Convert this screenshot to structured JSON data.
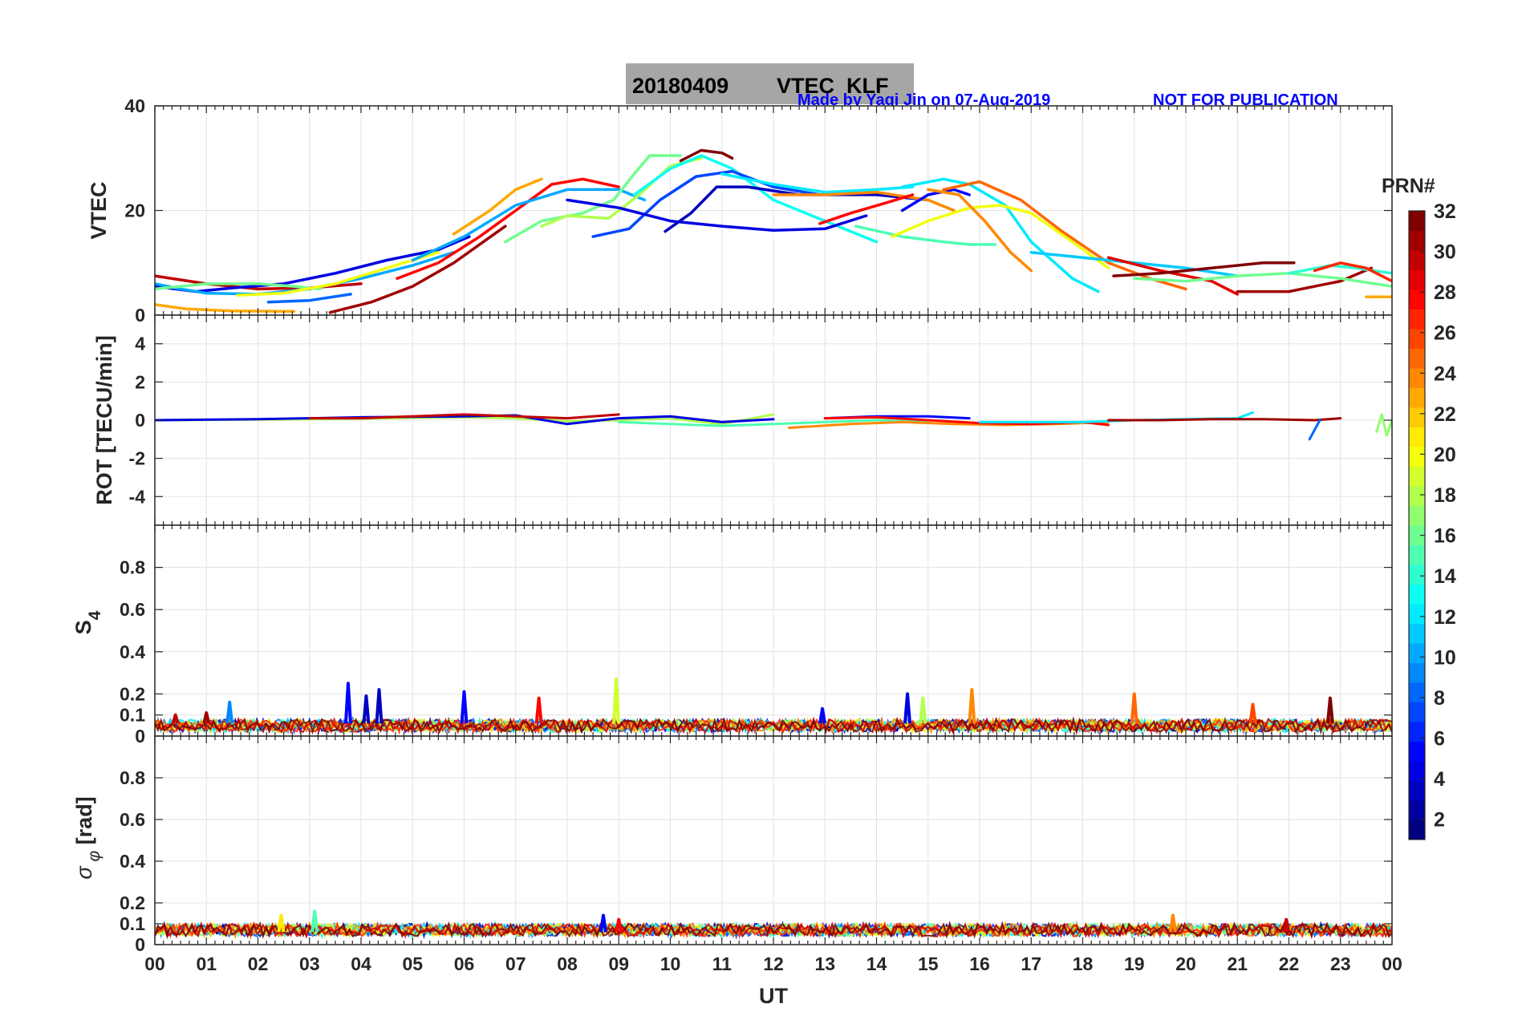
{
  "header": {
    "title_date": "20180409",
    "title_name": "VTEC  KLF",
    "credit": "Made by Yaqi Jin on 07-Aug-2019",
    "notice": "NOT FOR PUBLICATION"
  },
  "colorbar": {
    "title": "PRN#",
    "ticks": [
      "2",
      "4",
      "6",
      "8",
      "10",
      "12",
      "14",
      "16",
      "18",
      "20",
      "22",
      "24",
      "26",
      "28",
      "30",
      "32"
    ],
    "range": [
      1,
      32
    ],
    "colormap": "jet"
  },
  "chart_data": [
    {
      "type": "line",
      "id": "vtec",
      "ylabel": "VTEC",
      "ylim": [
        0,
        40
      ],
      "yticks": [
        "0",
        "20",
        "40"
      ],
      "xlim": [
        0,
        24
      ],
      "grid": true,
      "series": [
        {
          "prn": 30,
          "x": [
            0,
            1.0,
            2.0,
            3.0,
            4.0
          ],
          "y": [
            7.5,
            6.0,
            5.0,
            5.2,
            6.0
          ]
        },
        {
          "prn": 4,
          "x": [
            0,
            0.8,
            1.5,
            2.5,
            3.5,
            4.5,
            5.5,
            6.1
          ],
          "y": [
            5.5,
            4.5,
            5.2,
            6.0,
            8.0,
            10.5,
            12.5,
            15.0
          ]
        },
        {
          "prn": 10,
          "x": [
            0,
            0.5,
            1.0,
            2.0,
            3.0,
            4.0,
            5.0,
            5.8
          ],
          "y": [
            6.0,
            5.0,
            4.2,
            4.0,
            5.0,
            7.0,
            9.5,
            12.0
          ]
        },
        {
          "prn": 16,
          "x": [
            0,
            1.0,
            2.0,
            2.7,
            3.2
          ],
          "y": [
            5.0,
            6.0,
            6.0,
            5.5,
            5.0
          ]
        },
        {
          "prn": 23,
          "x": [
            0,
            0.6,
            1.5,
            2.7
          ],
          "y": [
            2.0,
            1.2,
            0.8,
            0.7
          ]
        },
        {
          "prn": 20,
          "x": [
            1.6,
            2.5,
            3.5,
            4.5,
            5.5
          ],
          "y": [
            3.8,
            4.2,
            6.0,
            9.0,
            12.0
          ]
        },
        {
          "prn": 8,
          "x": [
            2.2,
            3.0,
            3.8
          ],
          "y": [
            2.5,
            2.8,
            4.0
          ]
        },
        {
          "prn": 31,
          "x": [
            3.4,
            4.2,
            5.0,
            5.8,
            6.8
          ],
          "y": [
            0.5,
            2.5,
            5.5,
            10.0,
            17.0
          ]
        },
        {
          "prn": 28,
          "x": [
            4.7,
            5.5,
            6.3,
            7.0,
            7.7,
            8.3,
            9.0
          ],
          "y": [
            7.0,
            10.0,
            15.0,
            20.0,
            25.0,
            26.0,
            24.5
          ]
        },
        {
          "prn": 23,
          "x": [
            5.8,
            6.5,
            7.0,
            7.5
          ],
          "y": [
            15.5,
            20.0,
            24.0,
            26.0
          ]
        },
        {
          "prn": 10,
          "x": [
            5.0,
            6.0,
            7.0,
            8.0,
            9.0,
            9.5
          ],
          "y": [
            10.5,
            15.0,
            21.0,
            24.0,
            24.0,
            22.0
          ]
        },
        {
          "prn": 16,
          "x": [
            6.8,
            7.5,
            8.3,
            8.9,
            9.3,
            9.6,
            10.2
          ],
          "y": [
            14.0,
            18.0,
            19.5,
            22.0,
            27.0,
            30.5,
            30.5
          ]
        },
        {
          "prn": 18,
          "x": [
            7.5,
            8.0,
            8.8,
            9.4,
            10.0,
            10.6
          ],
          "y": [
            17.0,
            19.0,
            18.5,
            23.0,
            28.5,
            30.0
          ]
        },
        {
          "prn": 13,
          "x": [
            9.3,
            10.0,
            10.6,
            11.2,
            12.0,
            13.0,
            14.0
          ],
          "y": [
            23.0,
            28.0,
            30.5,
            28.0,
            22.0,
            18.0,
            14.0
          ]
        },
        {
          "prn": 7,
          "x": [
            8.5,
            9.2,
            9.8,
            10.5,
            11.2,
            12.0,
            12.9
          ],
          "y": [
            15.0,
            16.5,
            22.0,
            26.5,
            27.5,
            24.5,
            23.0
          ]
        },
        {
          "prn": 4,
          "x": [
            8.0,
            9.0,
            10.0,
            11.0,
            12.0,
            13.0,
            13.8
          ],
          "y": [
            22.0,
            20.5,
            18.0,
            17.0,
            16.2,
            16.5,
            19.0
          ]
        },
        {
          "prn": 3,
          "x": [
            9.9,
            10.4,
            10.9,
            11.5,
            12.5,
            14.0,
            15.0
          ],
          "y": [
            16.0,
            19.5,
            24.5,
            24.5,
            23.0,
            23.0,
            22.0
          ]
        },
        {
          "prn": 32,
          "x": [
            10.2,
            10.6,
            11.0,
            11.2
          ],
          "y": [
            29.5,
            31.5,
            31.0,
            30.0
          ]
        },
        {
          "prn": 12,
          "x": [
            11.0,
            12.0,
            13.0,
            14.0,
            14.7
          ],
          "y": [
            27.0,
            25.0,
            23.5,
            24.0,
            24.5
          ]
        },
        {
          "prn": 24,
          "x": [
            12.0,
            13.0,
            14.0,
            15.0,
            15.5
          ],
          "y": [
            23.0,
            23.0,
            23.5,
            22.0,
            20.0
          ]
        },
        {
          "prn": 28,
          "x": [
            12.9,
            13.5,
            14.2,
            14.7
          ],
          "y": [
            17.5,
            19.5,
            21.5,
            23.0
          ]
        },
        {
          "prn": 5,
          "x": [
            14.5,
            15.0,
            15.5,
            15.8
          ],
          "y": [
            20.0,
            23.0,
            24.0,
            23.0
          ]
        },
        {
          "prn": 15,
          "x": [
            13.6,
            14.5,
            15.3,
            15.8,
            16.3
          ],
          "y": [
            17.0,
            15.0,
            14.0,
            13.5,
            13.5
          ]
        },
        {
          "prn": 12,
          "x": [
            14.5,
            15.3,
            15.8,
            16.5,
            17.0,
            17.8,
            18.3
          ],
          "y": [
            24.5,
            26.0,
            25.0,
            21.0,
            14.0,
            7.0,
            4.5
          ]
        },
        {
          "prn": 20,
          "x": [
            14.3,
            15.0,
            15.8,
            16.4,
            17.0,
            17.8,
            18.5
          ],
          "y": [
            15.0,
            18.0,
            20.5,
            21.0,
            19.5,
            14.0,
            9.0
          ]
        },
        {
          "prn": 24,
          "x": [
            15.0,
            15.6,
            16.1,
            16.6,
            17.0
          ],
          "y": [
            24.0,
            23.0,
            18.0,
            12.0,
            8.5
          ]
        },
        {
          "prn": 25,
          "x": [
            15.3,
            16.0,
            16.8,
            17.6,
            18.5,
            19.3,
            20.0
          ],
          "y": [
            24.0,
            25.5,
            22.0,
            16.0,
            10.0,
            7.0,
            5.0
          ]
        },
        {
          "prn": 11,
          "x": [
            17.0,
            18.0,
            19.0,
            20.0,
            21.0
          ],
          "y": [
            12.0,
            11.0,
            10.0,
            9.0,
            7.5
          ]
        },
        {
          "prn": 29,
          "x": [
            18.5,
            19.5,
            20.5,
            21.0
          ],
          "y": [
            11.0,
            8.5,
            6.5,
            4.0
          ]
        },
        {
          "prn": 32,
          "x": [
            18.6,
            19.5,
            20.5,
            21.5,
            22.1
          ],
          "y": [
            7.5,
            8.0,
            9.0,
            10.0,
            10.0
          ]
        },
        {
          "prn": 31,
          "x": [
            21.0,
            22.0,
            23.0,
            23.6
          ],
          "y": [
            4.5,
            4.5,
            6.5,
            9.0
          ]
        },
        {
          "prn": 16,
          "x": [
            19.0,
            20.0,
            21.0,
            22.0,
            23.0,
            24.0
          ],
          "y": [
            7.0,
            6.5,
            7.5,
            8.0,
            7.0,
            5.5
          ]
        },
        {
          "prn": 14,
          "x": [
            22.0,
            22.8,
            23.3,
            24.0
          ],
          "y": [
            8.0,
            9.5,
            9.0,
            8.0
          ]
        },
        {
          "prn": 23,
          "x": [
            23.5,
            24.0
          ],
          "y": [
            3.5,
            3.5
          ]
        },
        {
          "prn": 27,
          "x": [
            22.5,
            23.0,
            23.5,
            24.0
          ],
          "y": [
            8.5,
            10.0,
            9.0,
            6.5
          ]
        }
      ]
    },
    {
      "type": "line",
      "id": "rot",
      "ylabel": "ROT [TECU/min]",
      "ylim": [
        -5.5,
        5.5
      ],
      "yticks": [
        "-4",
        "-2",
        "0",
        "2",
        "4"
      ],
      "xlim": [
        0,
        24
      ],
      "grid": true,
      "series": [
        {
          "prn": 18,
          "x": [
            0,
            1.5,
            3.0,
            4.5,
            6.0,
            7.0,
            8.0,
            9.0,
            10.0,
            11.0,
            12.0
          ],
          "y": [
            0,
            0.02,
            0.05,
            0.1,
            0.15,
            0.1,
            -0.05,
            0.0,
            0.1,
            -0.2,
            0.3
          ]
        },
        {
          "prn": 4,
          "x": [
            0,
            2.0,
            4.0,
            6.0,
            7.0,
            8.0,
            9.0,
            10.0,
            11.0,
            12.0
          ],
          "y": [
            0,
            0.05,
            0.15,
            0.2,
            0.25,
            -0.2,
            0.1,
            0.2,
            -0.1,
            0.05
          ]
        },
        {
          "prn": 30,
          "x": [
            3.0,
            4.0,
            5.0,
            6.0,
            7.0,
            8.0,
            9.0
          ],
          "y": [
            0.1,
            0.1,
            0.2,
            0.3,
            0.2,
            0.1,
            0.3
          ]
        },
        {
          "prn": 15,
          "x": [
            9.0,
            10.0,
            11.0,
            12.0,
            13.0,
            14.0,
            15.0
          ],
          "y": [
            -0.1,
            -0.2,
            -0.3,
            -0.2,
            -0.1,
            0.0,
            -0.1
          ]
        },
        {
          "prn": 24,
          "x": [
            12.3,
            13.5,
            14.5,
            15.5,
            16.5,
            17.5,
            18.5
          ],
          "y": [
            -0.4,
            -0.2,
            -0.1,
            -0.2,
            -0.25,
            -0.2,
            -0.1
          ]
        },
        {
          "prn": 5,
          "x": [
            13.0,
            14.0,
            15.0,
            15.8
          ],
          "y": [
            0.1,
            0.2,
            0.2,
            0.1
          ]
        },
        {
          "prn": 28,
          "x": [
            13.0,
            14.0,
            15.0,
            16.0,
            17.0,
            18.0,
            18.5
          ],
          "y": [
            0.1,
            0.15,
            0.0,
            -0.15,
            -0.2,
            -0.1,
            -0.25
          ]
        },
        {
          "prn": 12,
          "x": [
            16.0,
            17.0,
            18.0,
            19.0,
            20.0,
            21.0,
            21.3
          ],
          "y": [
            -0.1,
            -0.1,
            -0.1,
            0.0,
            0.05,
            0.1,
            0.4
          ]
        },
        {
          "prn": 31,
          "x": [
            18.5,
            19.5,
            20.5,
            21.5,
            22.5,
            23.0
          ],
          "y": [
            0.0,
            0.0,
            0.05,
            0.05,
            0.0,
            0.1
          ]
        },
        {
          "prn": 8,
          "x": [
            22.4,
            22.6
          ],
          "y": [
            -1.0,
            0.0
          ]
        },
        {
          "prn": 17,
          "x": [
            23.7,
            23.8,
            23.9,
            24.0
          ],
          "y": [
            -0.6,
            0.3,
            -0.8,
            0.0
          ]
        }
      ]
    },
    {
      "type": "line",
      "id": "s4",
      "ylabel": "S4",
      "ylim": [
        0,
        1.0
      ],
      "yticks": [
        "0",
        "0.1",
        "0.2",
        "0.4",
        "0.6",
        "0.8"
      ],
      "xlim": [
        0,
        24
      ],
      "grid": true,
      "spikes": [
        {
          "prn": 30,
          "x": 0.4,
          "y": 0.1
        },
        {
          "prn": 31,
          "x": 1.0,
          "y": 0.11
        },
        {
          "prn": 9,
          "x": 1.45,
          "y": 0.16
        },
        {
          "prn": 5,
          "x": 3.75,
          "y": 0.25
        },
        {
          "prn": 3,
          "x": 4.1,
          "y": 0.19
        },
        {
          "prn": 3,
          "x": 4.35,
          "y": 0.22
        },
        {
          "prn": 5,
          "x": 6.0,
          "y": 0.21
        },
        {
          "prn": 28,
          "x": 7.45,
          "y": 0.18
        },
        {
          "prn": 19,
          "x": 8.95,
          "y": 0.27
        },
        {
          "prn": 5,
          "x": 12.95,
          "y": 0.13
        },
        {
          "prn": 4,
          "x": 14.6,
          "y": 0.2
        },
        {
          "prn": 18,
          "x": 14.9,
          "y": 0.18
        },
        {
          "prn": 24,
          "x": 15.85,
          "y": 0.22
        },
        {
          "prn": 25,
          "x": 19.0,
          "y": 0.2
        },
        {
          "prn": 26,
          "x": 21.3,
          "y": 0.15
        },
        {
          "prn": 32,
          "x": 22.8,
          "y": 0.18
        }
      ],
      "baseline": {
        "x": [
          0,
          24
        ],
        "y_range": [
          0.02,
          0.08
        ]
      }
    },
    {
      "type": "line",
      "id": "sigma_phi",
      "ylabel": "σ_φ [rad]",
      "ylim": [
        0,
        1.0
      ],
      "yticks": [
        "0",
        "0.1",
        "0.2",
        "0.4",
        "0.6",
        "0.8"
      ],
      "xlim": [
        0,
        24
      ],
      "xlabel": "UT",
      "xticks": [
        "00",
        "01",
        "02",
        "03",
        "04",
        "05",
        "06",
        "07",
        "08",
        "09",
        "10",
        "11",
        "12",
        "13",
        "14",
        "15",
        "16",
        "17",
        "18",
        "19",
        "20",
        "21",
        "22",
        "23",
        "00"
      ],
      "grid": true,
      "spikes": [
        {
          "prn": 21,
          "x": 2.45,
          "y": 0.14
        },
        {
          "prn": 15,
          "x": 3.1,
          "y": 0.16
        },
        {
          "prn": 5,
          "x": 8.7,
          "y": 0.14
        },
        {
          "prn": 28,
          "x": 9.0,
          "y": 0.12
        },
        {
          "prn": 24,
          "x": 19.75,
          "y": 0.14
        },
        {
          "prn": 30,
          "x": 21.95,
          "y": 0.12
        }
      ],
      "baseline": {
        "x": [
          0,
          24
        ],
        "y_range": [
          0.04,
          0.1
        ]
      }
    }
  ]
}
